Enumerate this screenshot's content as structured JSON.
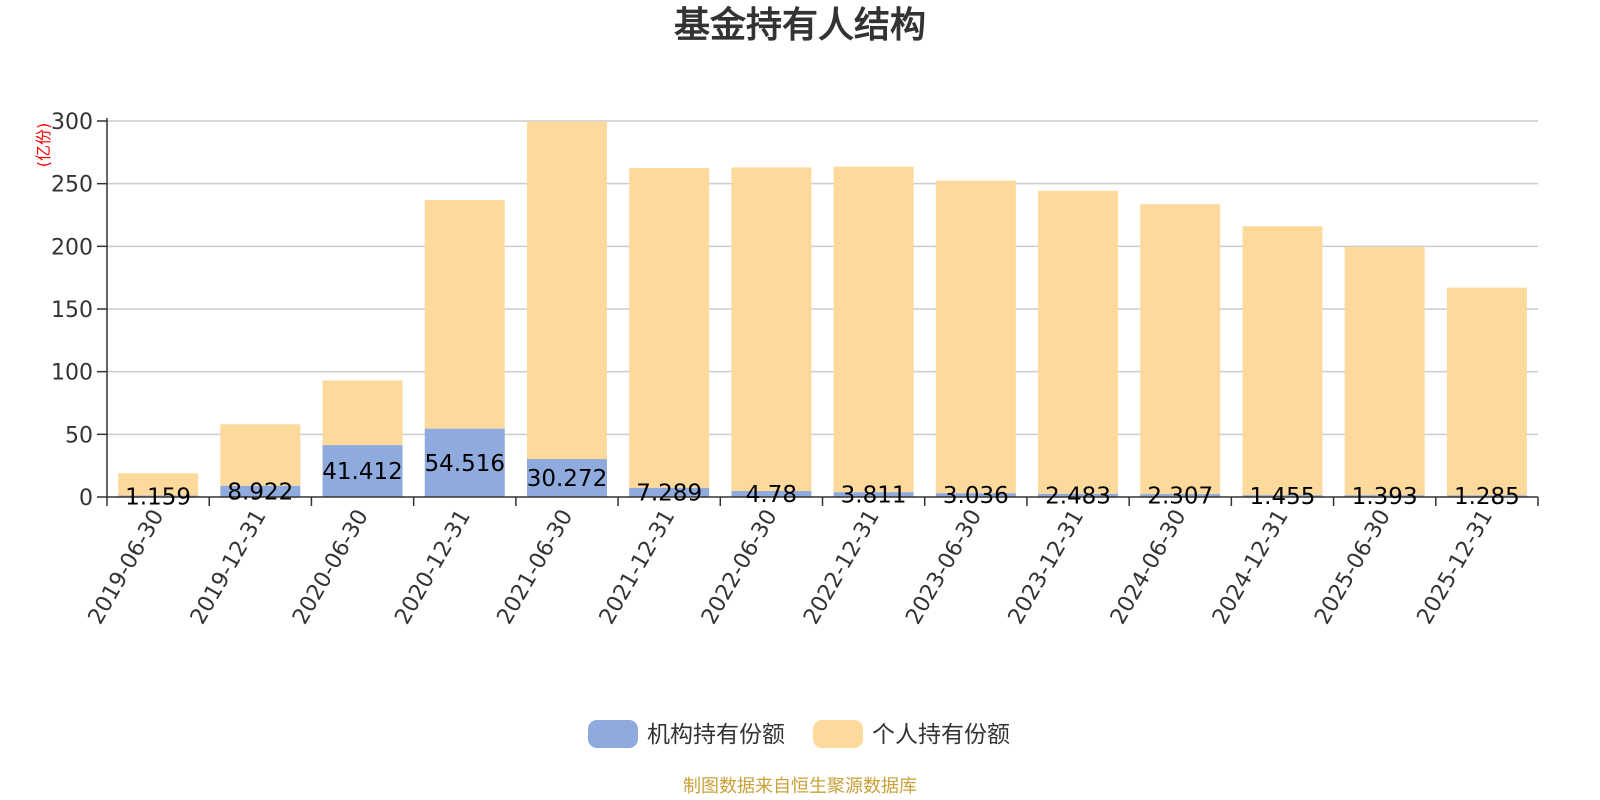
{
  "chart_data": {
    "type": "bar",
    "stacked": true,
    "title": "基金持有人结构",
    "unit_label": "(亿份)",
    "categories": [
      "2019-06-30",
      "2019-12-31",
      "2020-06-30",
      "2020-12-31",
      "2021-06-30",
      "2021-12-31",
      "2022-06-30",
      "2022-12-31",
      "2023-06-30",
      "2023-12-31",
      "2024-06-30",
      "2024-12-31",
      "2025-06-30",
      "2025-12-31"
    ],
    "series": [
      {
        "name": "机构持有份额",
        "color": "#8faadc",
        "values": [
          1.159,
          8.922,
          41.412,
          54.516,
          30.272,
          7.289,
          4.78,
          3.811,
          3.036,
          2.483,
          2.307,
          1.455,
          1.393,
          1.285
        ],
        "labels": [
          "1.159",
          "8.922",
          "41.412",
          "54.516",
          "30.272",
          "7.289",
          "4.78",
          "3.811",
          "3.036",
          "2.483",
          "2.307",
          "1.455",
          "1.393",
          "1.285"
        ]
      },
      {
        "name": "个人持有份额",
        "color": "#fdd99b",
        "values": [
          17.8,
          49.1,
          51.6,
          182.5,
          269.3,
          255.2,
          258.2,
          259.7,
          249.4,
          241.8,
          231.3,
          214.6,
          198.0,
          165.8
        ]
      }
    ],
    "ylim": [
      0,
      300
    ],
    "yticks": [
      0,
      50,
      100,
      150,
      200,
      250,
      300
    ],
    "ytick_labels": [
      "0",
      "50",
      "100",
      "150",
      "200",
      "250",
      "300"
    ],
    "grid": true,
    "legend_position": "bottom-center",
    "source": "制图数据来自恒生聚源数据库",
    "colors": {
      "title": "#333333",
      "axis": "#333333",
      "grid": "#cccccc",
      "unit_label": "#ff0000",
      "source": "#c9a13a"
    }
  }
}
